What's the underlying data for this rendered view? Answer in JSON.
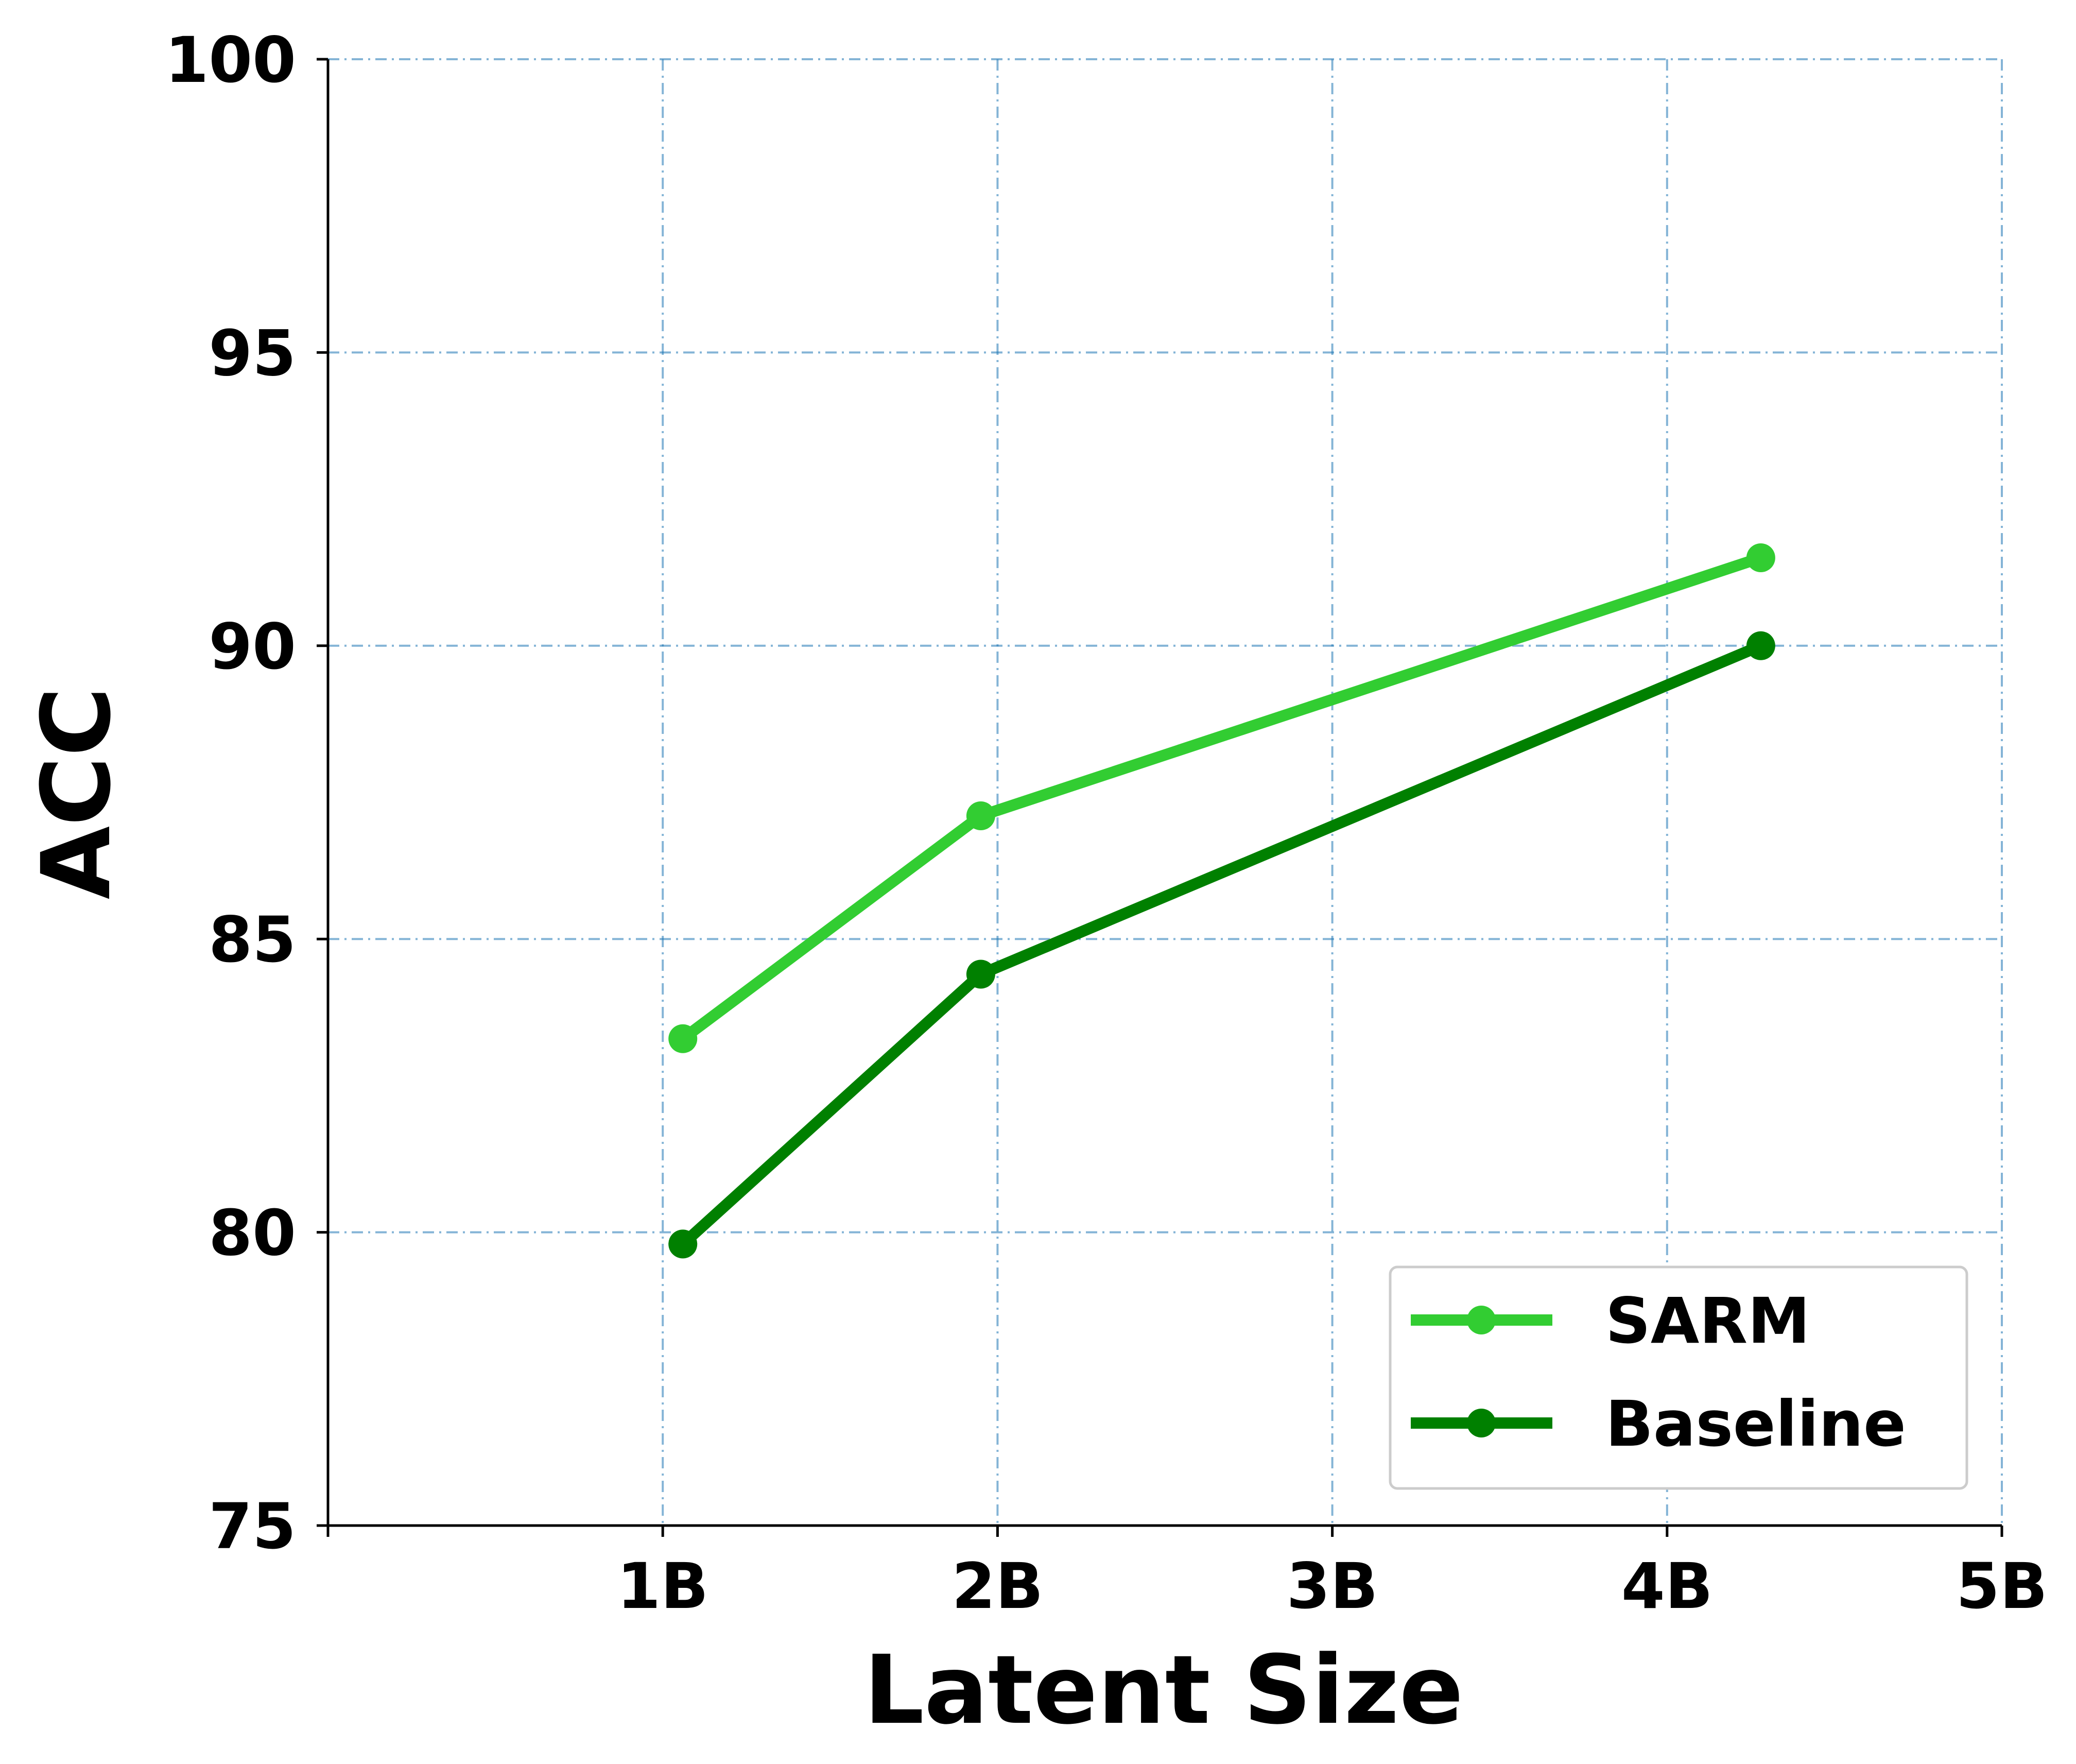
{
  "chart_data": {
    "type": "line",
    "title": "",
    "xlabel": "Latent Size",
    "ylabel": "ACC",
    "xlim": [
      0,
      5
    ],
    "ylim": [
      75,
      100
    ],
    "x_ticks": [
      1,
      2,
      3,
      4,
      5
    ],
    "x_tick_labels": [
      "1B",
      "2B",
      "3B",
      "4B",
      "5B"
    ],
    "y_ticks": [
      75,
      80,
      85,
      90,
      95,
      100
    ],
    "y_tick_labels": [
      "75",
      "80",
      "85",
      "90",
      "95",
      "100"
    ],
    "grid": true,
    "grid_color": "#1f77b4",
    "legend_position": "lower-right",
    "series": [
      {
        "name": "SARM",
        "color": "#32cd32",
        "x": [
          1.06,
          1.95,
          4.28
        ],
        "y": [
          83.3,
          87.1,
          91.5
        ]
      },
      {
        "name": "Baseline",
        "color": "#008000",
        "x": [
          1.06,
          1.95,
          4.28
        ],
        "y": [
          79.8,
          84.4,
          90.0
        ]
      }
    ]
  }
}
